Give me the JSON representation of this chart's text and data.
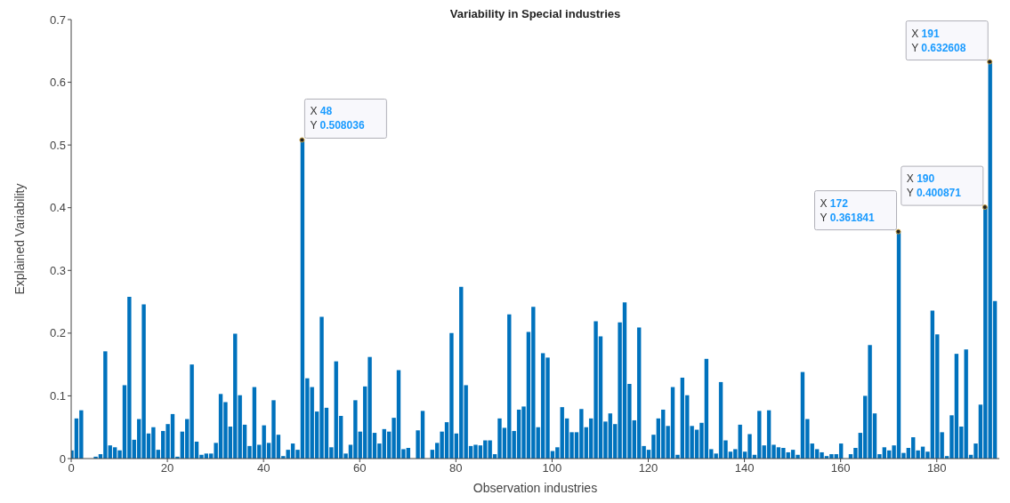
{
  "chart_data": {
    "type": "bar",
    "title": "Variability in Special industries",
    "xlabel": "Observation industries",
    "ylabel": "Explained Variability",
    "color": "#0072bd",
    "x": [
      0,
      1,
      2,
      3,
      4,
      5,
      6,
      7,
      8,
      9,
      10,
      11,
      12,
      13,
      14,
      15,
      16,
      17,
      18,
      19,
      20,
      21,
      22,
      23,
      24,
      25,
      26,
      27,
      28,
      29,
      30,
      31,
      32,
      33,
      34,
      35,
      36,
      37,
      38,
      39,
      40,
      41,
      42,
      43,
      44,
      45,
      46,
      47,
      48,
      49,
      50,
      51,
      52,
      53,
      54,
      55,
      56,
      57,
      58,
      59,
      60,
      61,
      62,
      63,
      64,
      65,
      66,
      67,
      68,
      69,
      70,
      71,
      72,
      73,
      74,
      75,
      76,
      77,
      78,
      79,
      80,
      81,
      82,
      83,
      84,
      85,
      86,
      87,
      88,
      89,
      90,
      91,
      92,
      93,
      94,
      95,
      96,
      97,
      98,
      99,
      100,
      101,
      102,
      103,
      104,
      105,
      106,
      107,
      108,
      109,
      110,
      111,
      112,
      113,
      114,
      115,
      116,
      117,
      118,
      119,
      120,
      121,
      122,
      123,
      124,
      125,
      126,
      127,
      128,
      129,
      130,
      131,
      132,
      133,
      134,
      135,
      136,
      137,
      138,
      139,
      140,
      141,
      142,
      143,
      144,
      145,
      146,
      147,
      148,
      149,
      150,
      151,
      152,
      153,
      154,
      155,
      156,
      157,
      158,
      159,
      160,
      161,
      162,
      163,
      164,
      165,
      166,
      167,
      168,
      169,
      170,
      171,
      172,
      173,
      174,
      175,
      176,
      177,
      178,
      179,
      180,
      181,
      182,
      183,
      184,
      185,
      186,
      187,
      188,
      189,
      190,
      191,
      192
    ],
    "values": [
      0.013,
      0.064,
      0.077,
      0,
      null,
      0.003,
      0.007,
      0.171,
      0.021,
      0.018,
      0.013,
      0.117,
      0.258,
      0.03,
      0.063,
      0.246,
      0.04,
      0.05,
      0.014,
      0.044,
      0.055,
      0.071,
      0.003,
      0.043,
      0.063,
      0.15,
      0.027,
      0.006,
      0.008,
      0.008,
      0.025,
      0.103,
      0.09,
      0.051,
      0.199,
      0.101,
      0.054,
      0.02,
      0.114,
      0.022,
      0.053,
      0.025,
      0.093,
      0.038,
      0.004,
      0.014,
      0.024,
      0.014,
      0.508036,
      0.128,
      0.114,
      0.075,
      0.226,
      0.081,
      0.018,
      0.155,
      0.068,
      0.008,
      0.022,
      0.093,
      0.043,
      0.115,
      0.162,
      0.041,
      0.024,
      0.047,
      0.043,
      0.065,
      0.141,
      0.015,
      0.017,
      0,
      0.045,
      0.076,
      null,
      0.014,
      0.025,
      0.043,
      0.058,
      0.2,
      0.04,
      0.274,
      0.117,
      0.02,
      0.022,
      0.021,
      0.029,
      0.029,
      0.007,
      0.064,
      0.049,
      0.23,
      0.044,
      0.078,
      0.083,
      0.202,
      0.242,
      0.05,
      0.168,
      0.161,
      0.012,
      0.018,
      0.082,
      0.064,
      0.042,
      0.042,
      0.079,
      0.05,
      0.064,
      0.219,
      0.195,
      0.059,
      0.072,
      0.055,
      0.217,
      0.249,
      0.119,
      0.061,
      0.209,
      0.02,
      0.014,
      0.038,
      0.064,
      0.078,
      0.052,
      0.114,
      0.006,
      0.129,
      0.101,
      0.052,
      0.046,
      0.057,
      0.159,
      0.015,
      0.008,
      0.122,
      0.029,
      0.011,
      0.015,
      0.054,
      0.011,
      0.039,
      0.006,
      0.076,
      0.021,
      0.077,
      0.022,
      0.018,
      0.017,
      0.01,
      0.014,
      0.006,
      0.138,
      0.063,
      0.024,
      0.015,
      0.01,
      0.004,
      0.007,
      0.007,
      0.024,
      null,
      0.007,
      0.017,
      0.041,
      0.1,
      0.181,
      0.072,
      0.007,
      0.018,
      0.013,
      0.021,
      0.361841,
      0.009,
      0.017,
      0.034,
      0.013,
      0.019,
      0.011,
      0.236,
      0.198,
      0.042,
      0.004,
      0.069,
      0.167,
      0.051,
      0.174,
      0.006,
      0.024,
      0.086,
      0.400871,
      0.632608,
      0.251
    ],
    "xlim": [
      0,
      193
    ],
    "xticks": [
      0,
      20,
      40,
      60,
      80,
      100,
      120,
      140,
      160,
      180
    ],
    "ylim": [
      0,
      0.7
    ],
    "yticks": [
      0,
      0.1,
      0.2,
      0.3,
      0.4,
      0.5,
      0.6,
      0.7
    ],
    "annotations": [
      {
        "text": "X 48\nY 0.508036",
        "x": 48,
        "y": 0.508036
      },
      {
        "text": "X 172\nY 0.361841",
        "x": 172,
        "y": 0.361841
      },
      {
        "text": "X 190\nY 0.400871",
        "x": 190,
        "y": 0.400871
      },
      {
        "text": "X 191\nY 0.632608",
        "x": 191,
        "y": 0.632608
      }
    ]
  }
}
